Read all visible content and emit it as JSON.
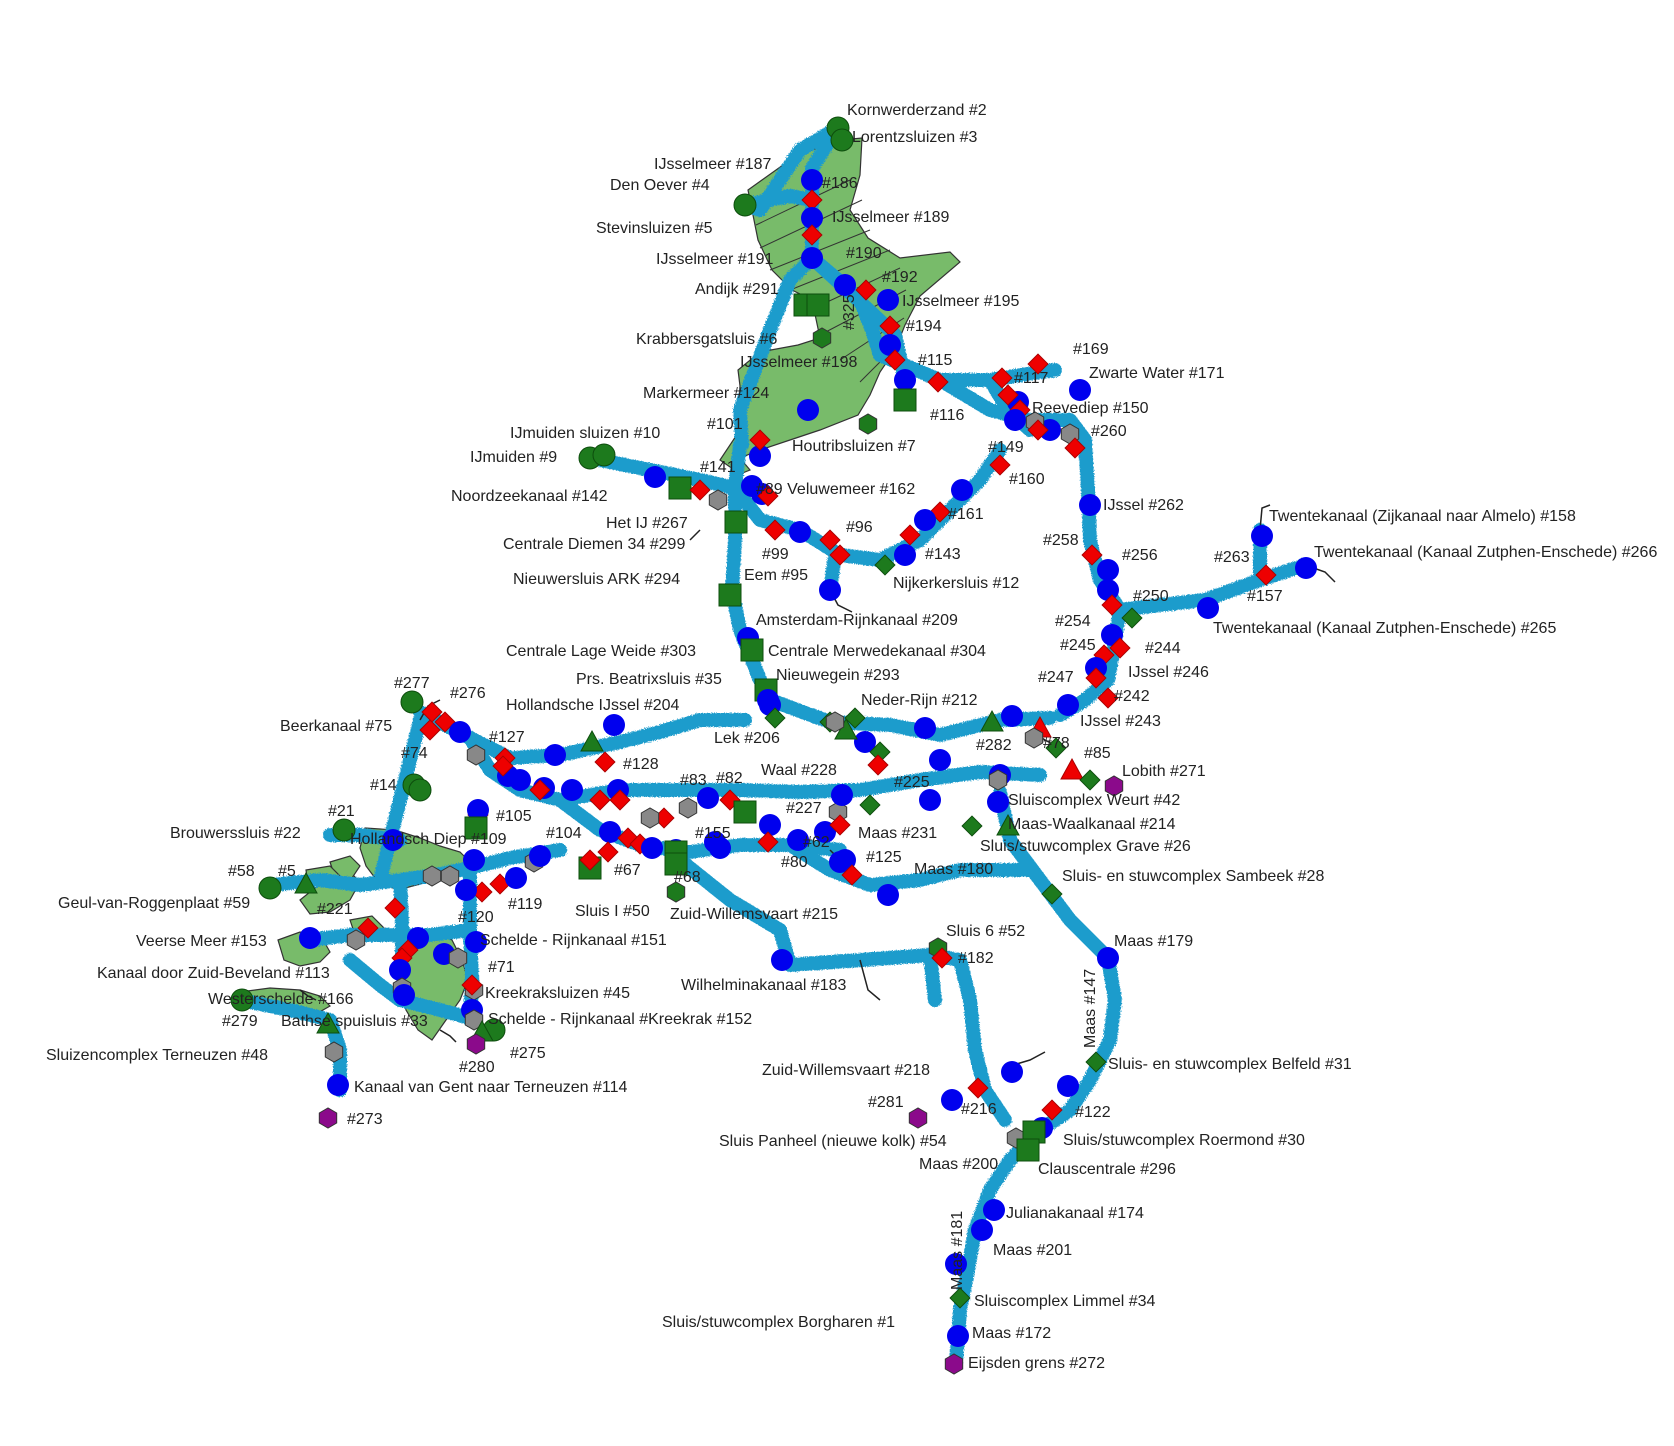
{
  "colors": {
    "water": "#1f9ccc",
    "land": "#78bb6a",
    "lock": "#0000ee",
    "bridge": "#ee0000",
    "weir": "#1d7a1d",
    "station": "#1d7a1d",
    "junction": "#888888",
    "border": "#8b0a8b",
    "text": "#222222"
  },
  "symbols": {
    "circle": "blue-circle-icon",
    "diamond": "red-diamond-icon",
    "green-diamond": "green-diamond-icon",
    "square": "green-square-icon",
    "triangle": "green-triangle-icon",
    "red-triangle": "red-triangle-icon",
    "green-circle": "green-circle-icon",
    "hexagon": "grey-hexagon-icon",
    "green-hexagon": "green-hexagon-icon",
    "purple-hexagon": "purple-hexagon-icon"
  },
  "labels": [
    {
      "text": "Kornwerderzand #2"
    },
    {
      "text": "Lorentzsluizen #3"
    },
    {
      "text": "IJsselmeer #187"
    },
    {
      "text": "Den Oever #4"
    },
    {
      "text": "#186"
    },
    {
      "text": "IJsselmeer #189"
    },
    {
      "text": "Stevinsluizen #5"
    },
    {
      "text": "IJsselmeer #191"
    },
    {
      "text": "#190"
    },
    {
      "text": "Andijk #291"
    },
    {
      "text": "#192"
    },
    {
      "text": "IJsselmeer #195"
    },
    {
      "text": "#194"
    },
    {
      "text": "Krabbersgatsluis #6"
    },
    {
      "text": "#115"
    },
    {
      "text": "IJsselmeer #198"
    },
    {
      "text": "#169"
    },
    {
      "text": "Zwarte Water #171"
    },
    {
      "text": "#117"
    },
    {
      "text": "Markermeer #124"
    },
    {
      "text": "Reevediep #150"
    },
    {
      "text": "#116"
    },
    {
      "text": "IJmuiden sluizen #10"
    },
    {
      "text": "#101"
    },
    {
      "text": "Houtribsluizen #7"
    },
    {
      "text": "#260"
    },
    {
      "text": "IJmuiden #9"
    },
    {
      "text": "#149"
    },
    {
      "text": "#141"
    },
    {
      "text": "#160"
    },
    {
      "text": "Noordzeekanaal #142"
    },
    {
      "text": "#89 Veluwemeer #162"
    },
    {
      "text": "IJssel #262"
    },
    {
      "text": "Het IJ #267"
    },
    {
      "text": "#161"
    },
    {
      "text": "Centrale Diemen 34 #299"
    },
    {
      "text": "#96"
    },
    {
      "text": "#258"
    },
    {
      "text": "Twentekanaal (Zijkanaal naar Almelo) #158"
    },
    {
      "text": "#99"
    },
    {
      "text": "#143"
    },
    {
      "text": "#256"
    },
    {
      "text": "#263"
    },
    {
      "text": "Twentekanaal (Kanaal Zutphen-Enschede) #266"
    },
    {
      "text": "Eem #95"
    },
    {
      "text": "Nijkerkersluis #12"
    },
    {
      "text": "Nieuwersluis ARK #294"
    },
    {
      "text": "#250"
    },
    {
      "text": "#157"
    },
    {
      "text": "Amsterdam-Rijnkanaal #209"
    },
    {
      "text": "#254"
    },
    {
      "text": "Twentekanaal (Kanaal Zutphen-Enschede) #265"
    },
    {
      "text": "#245"
    },
    {
      "text": "#244"
    },
    {
      "text": "Centrale Lage Weide #303"
    },
    {
      "text": "Centrale Merwedekanaal #304"
    },
    {
      "text": "IJssel #246"
    },
    {
      "text": "Prs. Beatrixsluis #35"
    },
    {
      "text": "Nieuwegein #293"
    },
    {
      "text": "#247"
    },
    {
      "text": "#277"
    },
    {
      "text": "#276"
    },
    {
      "text": "#242"
    },
    {
      "text": "Hollandsche IJssel #204"
    },
    {
      "text": "Neder-Rijn #212"
    },
    {
      "text": "IJssel #243"
    },
    {
      "text": "Beerkanaal #75"
    },
    {
      "text": "Lek #206"
    },
    {
      "text": "#282"
    },
    {
      "text": "#78"
    },
    {
      "text": "#127"
    },
    {
      "text": "#74"
    },
    {
      "text": "#85"
    },
    {
      "text": "#128"
    },
    {
      "text": "Lobith #271"
    },
    {
      "text": "Waal #228"
    },
    {
      "text": "#83"
    },
    {
      "text": "#82"
    },
    {
      "text": "#225"
    },
    {
      "text": "#14"
    },
    {
      "text": "Sluiscomplex Weurt #42"
    },
    {
      "text": "#227"
    },
    {
      "text": "#21"
    },
    {
      "text": "#105"
    },
    {
      "text": "Maas-Waalkanaal #214"
    },
    {
      "text": "Brouwerssluis #22"
    },
    {
      "text": "Hollandsch Diep #109"
    },
    {
      "text": "#104"
    },
    {
      "text": "#155"
    },
    {
      "text": "Maas #231"
    },
    {
      "text": "Sluis/stuwcomplex Grave #26"
    },
    {
      "text": "#80"
    },
    {
      "text": "#62"
    },
    {
      "text": "#125"
    },
    {
      "text": "#58"
    },
    {
      "text": "#5"
    },
    {
      "text": "#67"
    },
    {
      "text": "Maas #180"
    },
    {
      "text": "#68"
    },
    {
      "text": "Sluis- en stuwcomplex Sambeek #28"
    },
    {
      "text": "#221"
    },
    {
      "text": "Geul-van-Roggenplaat #59"
    },
    {
      "text": "#119"
    },
    {
      "text": "#120"
    },
    {
      "text": "Sluis I #50"
    },
    {
      "text": "Zuid-Willemsvaart #215"
    },
    {
      "text": "Veerse Meer #153"
    },
    {
      "text": "Schelde - Rijnkanaal #151"
    },
    {
      "text": "Sluis 6 #52"
    },
    {
      "text": "Maas #179"
    },
    {
      "text": "Kanaal door Zuid-Beveland #113"
    },
    {
      "text": "#71"
    },
    {
      "text": "#182"
    },
    {
      "text": "Wilhelminakanaal #183"
    },
    {
      "text": "Westerschelde #166"
    },
    {
      "text": "Kreekraksluizen #45"
    },
    {
      "text": "#279"
    },
    {
      "text": "Bathse spuisluis #33"
    },
    {
      "text": "Schelde - Rijnkanaal #Kreekrak #152"
    },
    {
      "text": "Sluizencomplex Terneuzen #48"
    },
    {
      "text": "#275"
    },
    {
      "text": "#280"
    },
    {
      "text": "Sluis- en stuwcomplex Belfeld #31"
    },
    {
      "text": "Zuid-Willemsvaart #218"
    },
    {
      "text": "Kanaal van Gent naar Terneuzen #114"
    },
    {
      "text": "#281"
    },
    {
      "text": "#216"
    },
    {
      "text": "#122"
    },
    {
      "text": "#273"
    },
    {
      "text": "Sluis/stuwcomplex Roermond #30"
    },
    {
      "text": "Sluis Panheel (nieuwe kolk) #54"
    },
    {
      "text": "Maas #200"
    },
    {
      "text": "Clauscentrale #296"
    },
    {
      "text": "Julianakanaal #174"
    },
    {
      "text": "Maas #201"
    },
    {
      "text": "Sluiscomplex Limmel #34"
    },
    {
      "text": "Sluis/stuwcomplex Borgharen #1"
    },
    {
      "text": "Maas #172"
    },
    {
      "text": "Eijsden grens #272"
    }
  ],
  "vertical_labels": [
    {
      "text": "#325"
    },
    {
      "text": "Maas #147"
    },
    {
      "text": "Maas #181"
    }
  ]
}
